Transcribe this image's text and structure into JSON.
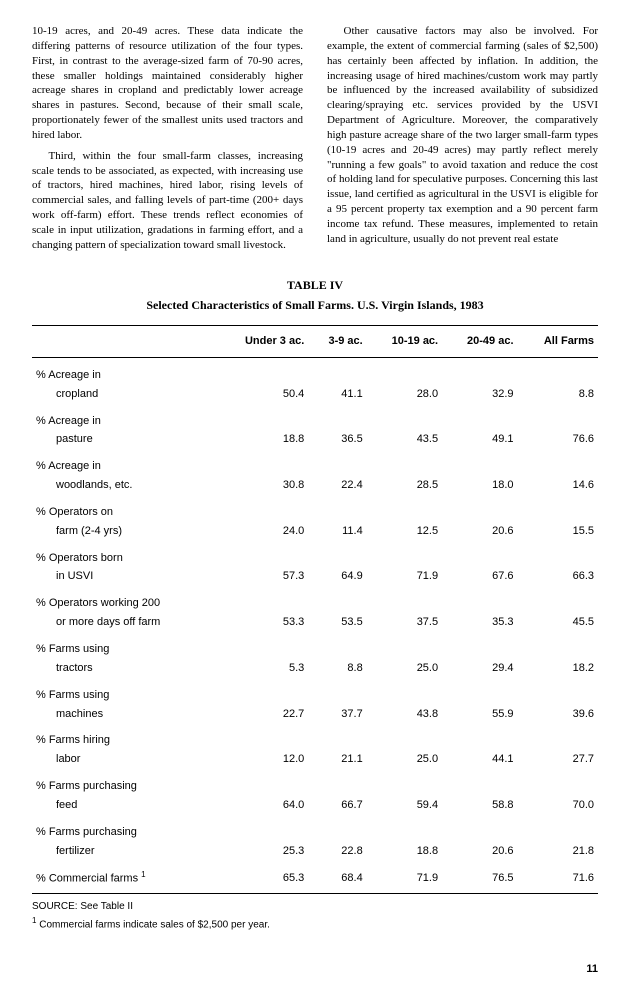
{
  "paragraphs": {
    "left": [
      "10-19 acres, and 20-49 acres. These data indicate the differing patterns of resource utilization of the four types. First, in contrast to the average-sized farm of 70-90 acres, these smaller holdings maintained considerably higher acreage shares in cropland and predictably lower acreage shares in pastures. Second, because of their small scale, proportionately fewer of the smallest units used tractors and hired labor.",
      "Third, within the four small-farm classes, increasing scale tends to be associated, as expected, with increasing use of tractors, hired machines, hired labor, rising levels of commercial sales, and falling levels of part-time (200+ days work off-farm) effort. These trends reflect economies of scale in input utilization, gradations in farming effort, and a changing pattern of specialization toward small livestock."
    ],
    "right": [
      "Other causative factors may also be involved. For example, the extent of commercial farming (sales of $2,500) has certainly been affected by inflation. In addition, the increasing usage of hired machines/custom work may partly be influenced by the increased availability of subsidized clearing/spraying etc. services provided by the USVI Department of Agriculture. Moreover, the comparatively high pasture acreage share of the two larger small-farm types (10-19 acres and 20-49 acres) may partly reflect merely \"running a few goals\" to avoid taxation and reduce the cost of holding land for speculative purposes. Concerning this last issue, land certified as agricultural in the USVI is eligible for a 95 percent property tax exemption and a 90 percent farm income tax refund. These measures, implemented to retain land in agriculture, usually do not prevent real estate"
    ]
  },
  "table": {
    "title": "TABLE IV",
    "subtitle": "Selected Characteristics of Small Farms.  U.S. Virgin Islands, 1983",
    "columns": [
      "",
      "Under 3 ac.",
      "3-9 ac.",
      "10-19 ac.",
      "20-49 ac.",
      "All Farms"
    ],
    "rows": [
      {
        "label": "% Acreage in",
        "sub": "cropland",
        "v": [
          "50.4",
          "41.1",
          "28.0",
          "32.9",
          "8.8"
        ]
      },
      {
        "label": "% Acreage in",
        "sub": "pasture",
        "v": [
          "18.8",
          "36.5",
          "43.5",
          "49.1",
          "76.6"
        ]
      },
      {
        "label": "% Acreage in",
        "sub": "woodlands, etc.",
        "v": [
          "30.8",
          "22.4",
          "28.5",
          "18.0",
          "14.6"
        ]
      },
      {
        "label": "% Operators on",
        "sub": "farm (2-4 yrs)",
        "v": [
          "24.0",
          "11.4",
          "12.5",
          "20.6",
          "15.5"
        ]
      },
      {
        "label": "% Operators born",
        "sub": "in USVI",
        "v": [
          "57.3",
          "64.9",
          "71.9",
          "67.6",
          "66.3"
        ]
      },
      {
        "label": "% Operators working 200",
        "sub": "or more days off farm",
        "v": [
          "53.3",
          "53.5",
          "37.5",
          "35.3",
          "45.5"
        ]
      },
      {
        "label": "% Farms using",
        "sub": "tractors",
        "v": [
          "5.3",
          "8.8",
          "25.0",
          "29.4",
          "18.2"
        ]
      },
      {
        "label": "% Farms using",
        "sub": "machines",
        "v": [
          "22.7",
          "37.7",
          "43.8",
          "55.9",
          "39.6"
        ]
      },
      {
        "label": "% Farms hiring",
        "sub": "labor",
        "v": [
          "12.0",
          "21.1",
          "25.0",
          "44.1",
          "27.7"
        ]
      },
      {
        "label": "% Farms purchasing",
        "sub": "feed",
        "v": [
          "64.0",
          "66.7",
          "59.4",
          "58.8",
          "70.0"
        ]
      },
      {
        "label": "% Farms purchasing",
        "sub": "fertilizer",
        "v": [
          "25.3",
          "22.8",
          "18.8",
          "20.6",
          "21.8"
        ]
      }
    ],
    "last_row": {
      "label": "% Commercial farms 1",
      "v": [
        "65.3",
        "68.4",
        "71.9",
        "76.5",
        "71.6"
      ]
    },
    "source": "SOURCE:  See Table II",
    "footnote_num": "1",
    "footnote": " Commercial farms indicate sales of $2,500 per year."
  },
  "page_number": "11"
}
